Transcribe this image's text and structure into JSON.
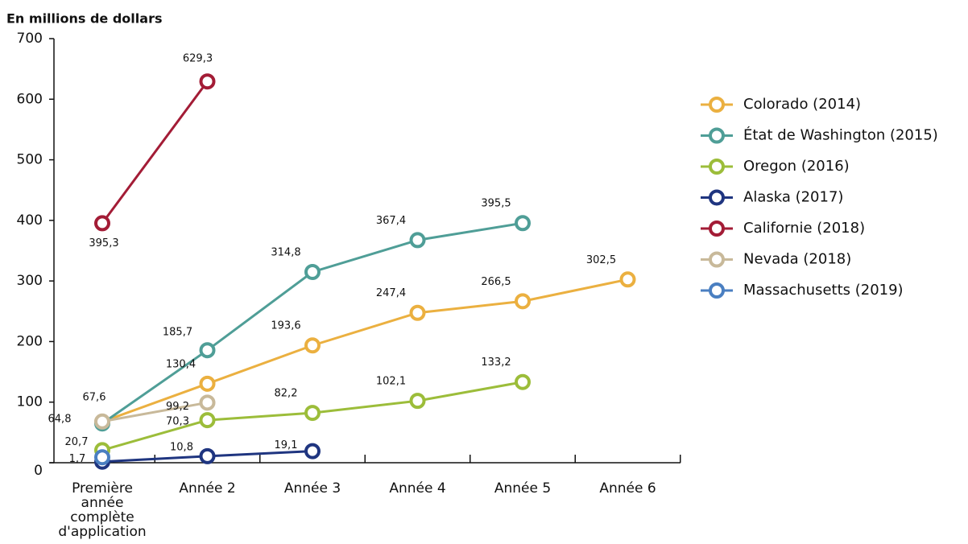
{
  "chart_data": {
    "type": "line",
    "title": "En millions de dollars",
    "categories": [
      "Première année complète d'application",
      "Année 2",
      "Année 3",
      "Année 4",
      "Année 5",
      "Année 6"
    ],
    "ylim": [
      0,
      700
    ],
    "yticks": [
      0,
      100,
      200,
      300,
      400,
      500,
      600,
      700
    ],
    "series": [
      {
        "name": "Colorado (2014)",
        "color": "#ebb040",
        "values": [
          67.6,
          130.4,
          193.6,
          247.4,
          266.5,
          302.5
        ],
        "value_labels": [
          "67,6",
          "130,4",
          "193,6",
          "247,4",
          "266,5",
          "302,5"
        ]
      },
      {
        "name": "État de Washington (2015)",
        "color": "#4f9e97",
        "values": [
          64.8,
          185.7,
          314.8,
          367.4,
          395.5,
          null
        ],
        "value_labels": [
          "64,8",
          "185,7",
          "314,8",
          "367,4",
          "395,5",
          null
        ]
      },
      {
        "name": "Oregon (2016)",
        "color": "#9cbd3a",
        "values": [
          20.7,
          70.3,
          82.2,
          102.1,
          133.2,
          null
        ],
        "value_labels": [
          "20,7",
          "70,3",
          "82,2",
          "102,1",
          "133,2",
          null
        ]
      },
      {
        "name": "Alaska (2017)",
        "color": "#1f3580",
        "values": [
          1.7,
          10.8,
          19.1,
          null,
          null,
          null
        ],
        "value_labels": [
          "1,7",
          "10,8",
          "19,1",
          null,
          null,
          null
        ]
      },
      {
        "name": "Californie (2018)",
        "color": "#a31c36",
        "values": [
          395.3,
          629.3,
          null,
          null,
          null,
          null
        ],
        "value_labels": [
          "395,3",
          "629,3",
          null,
          null,
          null,
          null
        ]
      },
      {
        "name": "Nevada (2018)",
        "color": "#c8b99a",
        "values": [
          68,
          99.2,
          null,
          null,
          null,
          null
        ],
        "value_labels": [
          null,
          "99,2",
          null,
          null,
          null,
          null
        ]
      },
      {
        "name": "Massachusetts (2019)",
        "color": "#4a7fc1",
        "values": [
          9,
          null,
          null,
          null,
          null,
          null
        ],
        "value_labels": [
          null,
          null,
          null,
          null,
          null,
          null
        ]
      }
    ]
  }
}
